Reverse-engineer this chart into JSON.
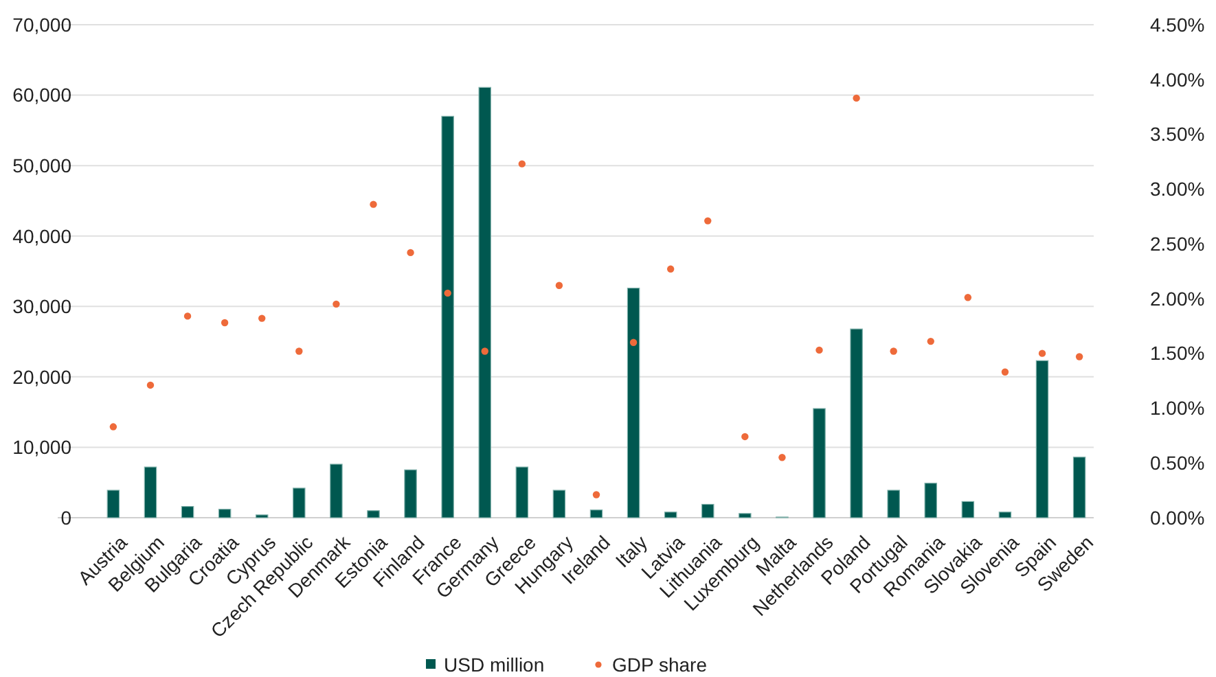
{
  "chart_data": {
    "type": "bar",
    "categories": [
      "Austria",
      "Belgium",
      "Bulgaria",
      "Croatia",
      "Cyprus",
      "Czech Republic",
      "Denmark",
      "Estonia",
      "Finland",
      "France",
      "Germany",
      "Greece",
      "Hungary",
      "Ireland",
      "Italy",
      "Latvia",
      "Lithuania",
      "Luxemburg",
      "Malta",
      "Netherlands",
      "Poland",
      "Portugal",
      "Romania",
      "Slovakia",
      "Slovenia",
      "Spain",
      "Sweden"
    ],
    "series": [
      {
        "name": "USD million",
        "color": "#005850",
        "values": [
          3900,
          7200,
          1600,
          1200,
          400,
          4200,
          7600,
          1000,
          6800,
          57000,
          61100,
          7200,
          3900,
          1100,
          32600,
          800,
          1900,
          600,
          100,
          15500,
          26800,
          3900,
          4900,
          2300,
          800,
          22300,
          8600
        ]
      },
      {
        "name": "GDP share",
        "type": "scatter",
        "axis": "y2",
        "color": "#ee6a3a",
        "values": [
          0.83,
          1.21,
          1.84,
          1.78,
          1.82,
          1.52,
          1.95,
          2.86,
          2.42,
          2.05,
          1.52,
          3.23,
          2.12,
          0.21,
          1.6,
          2.27,
          2.71,
          0.74,
          0.55,
          1.53,
          3.83,
          1.52,
          1.61,
          2.01,
          1.33,
          1.5,
          1.47
        ]
      }
    ],
    "ylim": [
      0,
      70000
    ],
    "yticks": [
      {
        "value": 0,
        "label": "0"
      },
      {
        "value": 10000,
        "label": "10,000"
      },
      {
        "value": 20000,
        "label": "20,000"
      },
      {
        "value": 30000,
        "label": "30,000"
      },
      {
        "value": 40000,
        "label": "40,000"
      },
      {
        "value": 50000,
        "label": "50,000"
      },
      {
        "value": 60000,
        "label": "60,000"
      },
      {
        "value": 70000,
        "label": "70,000"
      }
    ],
    "y2lim": [
      0,
      4.5
    ],
    "y2ticks": [
      {
        "value": 0,
        "label": "0.00%"
      },
      {
        "value": 0.5,
        "label": "0.50%"
      },
      {
        "value": 1,
        "label": "1.00%"
      },
      {
        "value": 1.5,
        "label": "1.50%"
      },
      {
        "value": 2,
        "label": "2.00%"
      },
      {
        "value": 2.5,
        "label": "2.50%"
      },
      {
        "value": 3,
        "label": "3.00%"
      },
      {
        "value": 3.5,
        "label": "3.50%"
      },
      {
        "value": 4,
        "label": "4.00%"
      },
      {
        "value": 4.5,
        "label": "4.50%"
      }
    ],
    "grid": "y",
    "legend": "bottom",
    "marker": "circle"
  }
}
